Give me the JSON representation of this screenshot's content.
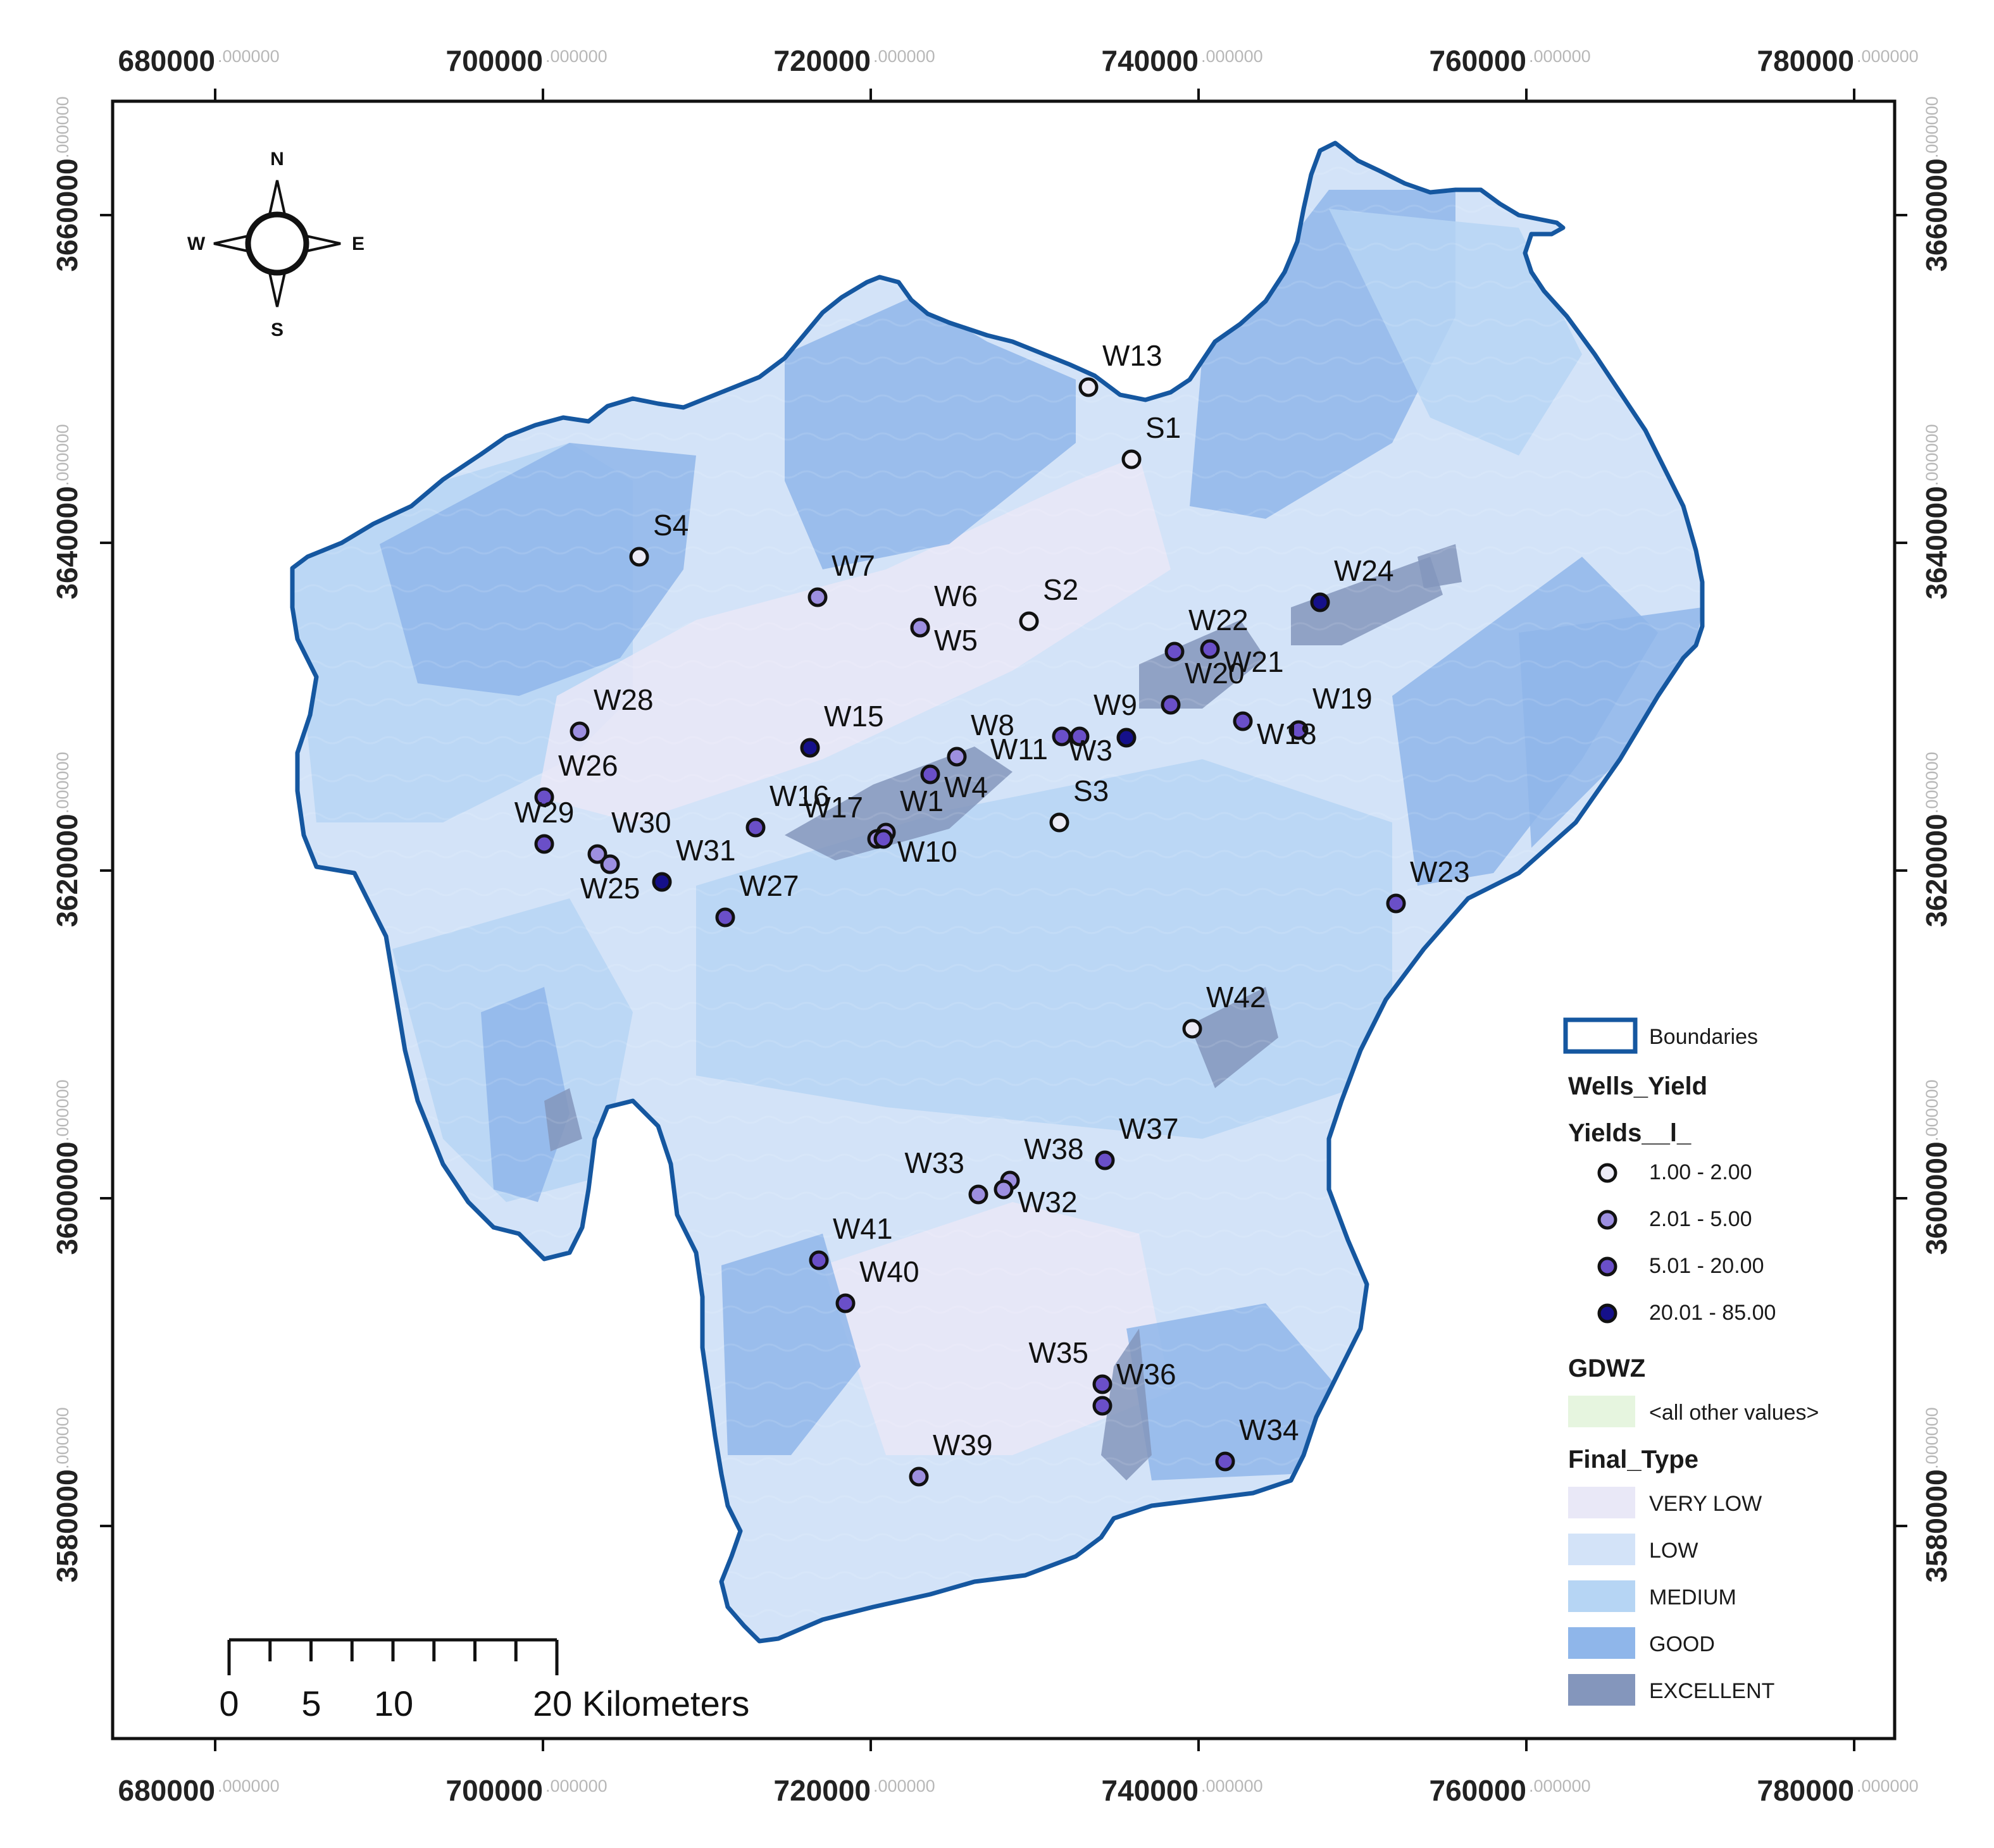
{
  "coordinates": {
    "x_ticks": [
      {
        "major": "680000",
        "minor": ".000000"
      },
      {
        "major": "700000",
        "minor": ".000000"
      },
      {
        "major": "720000",
        "minor": ".000000"
      },
      {
        "major": "740000",
        "minor": ".000000"
      },
      {
        "major": "760000",
        "minor": ".000000"
      },
      {
        "major": "780000",
        "minor": ".000000"
      }
    ],
    "y_ticks": [
      {
        "major": "3660000",
        "minor": ".000000"
      },
      {
        "major": "3640000",
        "minor": ".000000"
      },
      {
        "major": "3620000",
        "minor": ".000000"
      },
      {
        "major": "3600000",
        "minor": ".000000"
      },
      {
        "major": "3580000",
        "minor": ".000000"
      }
    ]
  },
  "compass": {
    "north": "N",
    "south": "S",
    "east": "E",
    "west": "W"
  },
  "scale_bar": {
    "labels": [
      "0",
      "5",
      "10",
      "20 Kilometers"
    ]
  },
  "wells": [
    {
      "id": "W13",
      "class": 0,
      "label_pos": "ne"
    },
    {
      "id": "S1",
      "class": 0,
      "label_pos": "ne"
    },
    {
      "id": "S4",
      "class": 0,
      "label_pos": "ne"
    },
    {
      "id": "W7",
      "class": 1,
      "label_pos": "ne"
    },
    {
      "id": "W6",
      "class": 1,
      "label_pos": "ne"
    },
    {
      "id": "W5",
      "class": 1,
      "label_pos": "se"
    },
    {
      "id": "S2",
      "class": 0,
      "label_pos": "ne"
    },
    {
      "id": "W24",
      "class": 3,
      "label_pos": "ne"
    },
    {
      "id": "W22",
      "class": 2,
      "label_pos": "ne"
    },
    {
      "id": "W21",
      "class": 2,
      "label_pos": "se"
    },
    {
      "id": "W20",
      "class": 2,
      "label_pos": "ne"
    },
    {
      "id": "W19",
      "class": 2,
      "label_pos": "ne"
    },
    {
      "id": "W18",
      "class": 2,
      "label_pos": "se"
    },
    {
      "id": "W28",
      "class": 1,
      "label_pos": "ne"
    },
    {
      "id": "W15",
      "class": 3,
      "label_pos": "ne"
    },
    {
      "id": "W9",
      "class": 2,
      "label_pos": "ne"
    },
    {
      "id": "W11",
      "class": 2,
      "label_pos": "sw"
    },
    {
      "id": "W3",
      "class": 3,
      "label_pos": "sw"
    },
    {
      "id": "W8",
      "class": 1,
      "label_pos": "ne"
    },
    {
      "id": "W4",
      "class": 2,
      "label_pos": "se"
    },
    {
      "id": "W26",
      "class": 2,
      "label_pos": "ne"
    },
    {
      "id": "W16",
      "class": 2,
      "label_pos": "ne"
    },
    {
      "id": "W17",
      "class": 1,
      "label_pos": "nw"
    },
    {
      "id": "W1",
      "class": 1,
      "label_pos": "ne"
    },
    {
      "id": "W10",
      "class": 2,
      "label_pos": "se"
    },
    {
      "id": "S3",
      "class": 0,
      "label_pos": "ne"
    },
    {
      "id": "W29",
      "class": 2,
      "label_pos": "n"
    },
    {
      "id": "W30",
      "class": 1,
      "label_pos": "ne"
    },
    {
      "id": "W25",
      "class": 1,
      "label_pos": "s"
    },
    {
      "id": "W31",
      "class": 3,
      "label_pos": "ne"
    },
    {
      "id": "W27",
      "class": 2,
      "label_pos": "ne"
    },
    {
      "id": "W23",
      "class": 2,
      "label_pos": "ne"
    },
    {
      "id": "W42",
      "class": 0,
      "label_pos": "ne"
    },
    {
      "id": "W37",
      "class": 2,
      "label_pos": "ne"
    },
    {
      "id": "W33",
      "class": 1,
      "label_pos": "nw"
    },
    {
      "id": "W38",
      "class": 1,
      "label_pos": "ne"
    },
    {
      "id": "W32",
      "class": 1,
      "label_pos": "se"
    },
    {
      "id": "W41",
      "class": 2,
      "label_pos": "ne"
    },
    {
      "id": "W40",
      "class": 2,
      "label_pos": "ne"
    },
    {
      "id": "W35",
      "class": 2,
      "label_pos": "nw"
    },
    {
      "id": "W36",
      "class": 2,
      "label_pos": "ne"
    },
    {
      "id": "W34",
      "class": 2,
      "label_pos": "ne"
    },
    {
      "id": "W39",
      "class": 1,
      "label_pos": "ne"
    }
  ],
  "legend": {
    "boundaries_label": "Boundaries",
    "wells_title": "Wells_Yield",
    "yields_title": "Yields__l_",
    "yield_classes": [
      {
        "label": "1.00 - 2.00",
        "color": "#ecebf6"
      },
      {
        "label": "2.01 - 5.00",
        "color": "#9d8fe0"
      },
      {
        "label": "5.01 - 20.00",
        "color": "#6a4fc8"
      },
      {
        "label": "20.01 - 85.00",
        "color": "#15108a"
      }
    ],
    "gdwz_title": "GDWZ",
    "gdwz_other": "<all other values>",
    "gdwz_other_color": "#e6f5df",
    "final_type_title": "Final_Type",
    "final_types": [
      {
        "label": "VERY LOW",
        "color": "#e9e8f7"
      },
      {
        "label": "LOW",
        "color": "#d3e3f8"
      },
      {
        "label": "MEDIUM",
        "color": "#b6d5f4"
      },
      {
        "label": "GOOD",
        "color": "#8fb6ea"
      },
      {
        "label": "EXCELLENT",
        "color": "#8496bc"
      }
    ]
  },
  "colors": {
    "boundary": "#1557a0",
    "frame": "#111111"
  }
}
